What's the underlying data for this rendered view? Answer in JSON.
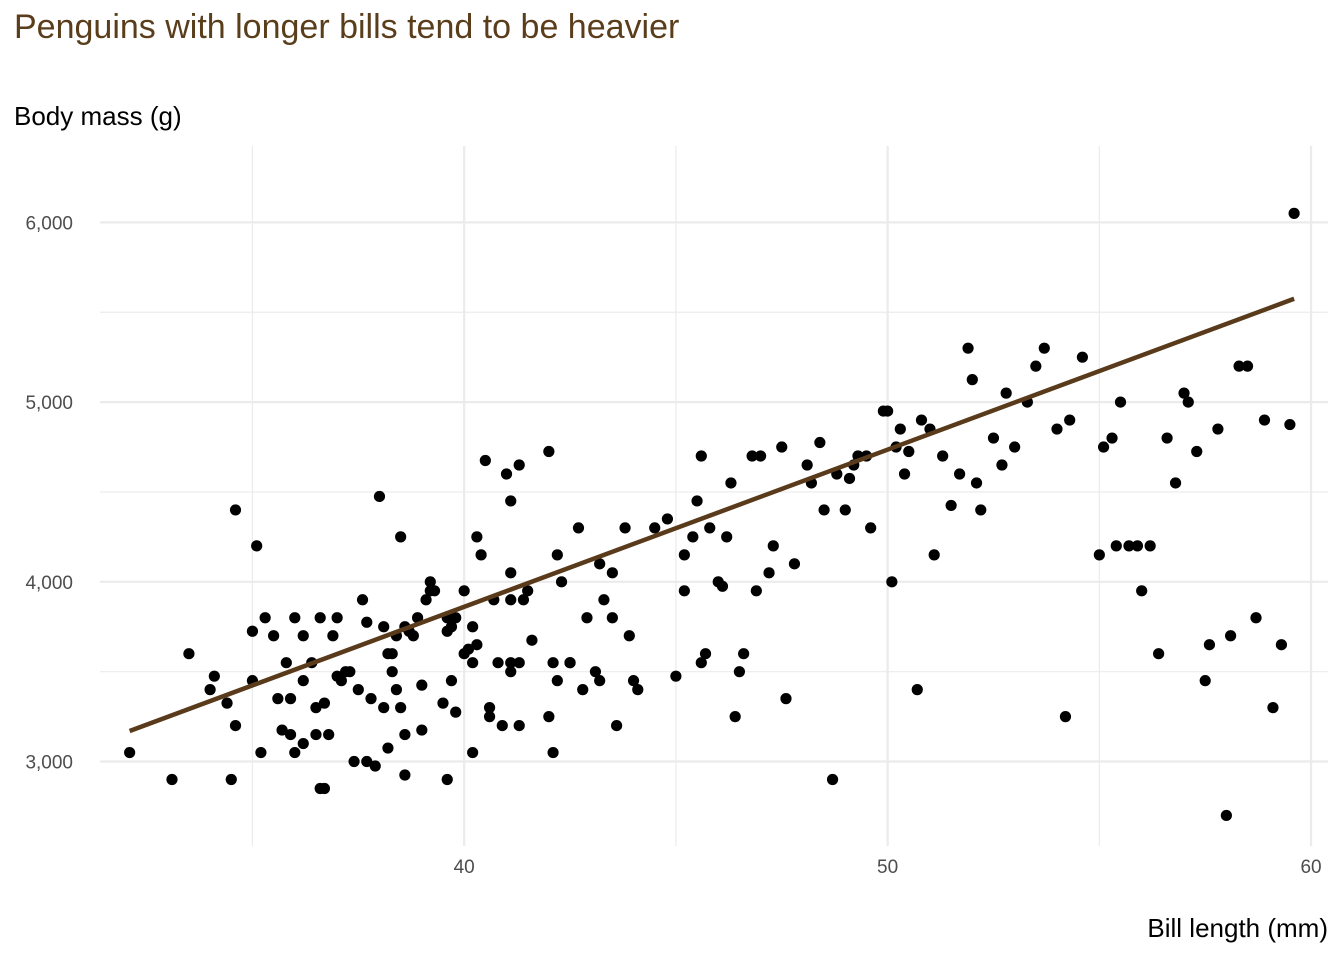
{
  "chart_data": {
    "type": "scatter",
    "title": "Penguins with longer bills tend to be heavier",
    "xlabel": "Bill length (mm)",
    "ylabel": "Body mass (g)",
    "xlim": [
      31.4,
      60.4
    ],
    "ylim": [
      2530,
      6425
    ],
    "x_ticks": [
      40,
      50,
      60
    ],
    "x_tick_labels": [
      "40",
      "50",
      "60"
    ],
    "y_ticks": [
      3000,
      4000,
      5000,
      6000
    ],
    "y_tick_labels": [
      "3,000",
      "4,000",
      "5,000",
      "6,000"
    ],
    "grid": true,
    "colors": {
      "title": "#5a3e1c",
      "trend": "#593a1a",
      "points": "#000000",
      "grid": "#ebebeb"
    },
    "trendline": {
      "x": [
        32.1,
        59.6
      ],
      "y": [
        3170,
        5575
      ]
    },
    "series": [
      {
        "points": [
          [
            32.1,
            3050
          ],
          [
            33.1,
            2900
          ],
          [
            33.5,
            3600
          ],
          [
            34.0,
            3400
          ],
          [
            34.1,
            3475
          ],
          [
            34.4,
            3325
          ],
          [
            34.5,
            2900
          ],
          [
            34.6,
            3200
          ],
          [
            34.6,
            4400
          ],
          [
            35.0,
            3725
          ],
          [
            35.0,
            3450
          ],
          [
            35.1,
            4200
          ],
          [
            35.2,
            3050
          ],
          [
            35.3,
            3800
          ],
          [
            35.5,
            3700
          ],
          [
            35.6,
            3350
          ],
          [
            35.7,
            3175
          ],
          [
            35.8,
            3550
          ],
          [
            35.9,
            3150
          ],
          [
            35.9,
            3350
          ],
          [
            36.0,
            3050
          ],
          [
            36.0,
            3800
          ],
          [
            36.2,
            3700
          ],
          [
            36.2,
            3100
          ],
          [
            36.2,
            3450
          ],
          [
            36.4,
            3550
          ],
          [
            36.5,
            3150
          ],
          [
            36.5,
            3300
          ],
          [
            36.6,
            3800
          ],
          [
            36.6,
            2850
          ],
          [
            36.7,
            2850
          ],
          [
            36.7,
            3325
          ],
          [
            36.8,
            3150
          ],
          [
            36.9,
            3700
          ],
          [
            37.0,
            3475
          ],
          [
            37.0,
            3800
          ],
          [
            37.1,
            3450
          ],
          [
            37.2,
            3500
          ],
          [
            37.3,
            3500
          ],
          [
            37.4,
            3000
          ],
          [
            37.5,
            3400
          ],
          [
            37.6,
            3900
          ],
          [
            37.7,
            3000
          ],
          [
            37.7,
            3775
          ],
          [
            37.8,
            3350
          ],
          [
            37.9,
            2975
          ],
          [
            38.0,
            4475
          ],
          [
            38.1,
            3750
          ],
          [
            38.1,
            3300
          ],
          [
            38.2,
            3600
          ],
          [
            38.2,
            3075
          ],
          [
            38.3,
            3500
          ],
          [
            38.3,
            3600
          ],
          [
            38.4,
            3700
          ],
          [
            38.4,
            3400
          ],
          [
            38.5,
            4250
          ],
          [
            38.5,
            3300
          ],
          [
            38.6,
            3150
          ],
          [
            38.6,
            3750
          ],
          [
            38.6,
            2925
          ],
          [
            38.7,
            3725
          ],
          [
            38.8,
            3700
          ],
          [
            38.9,
            3800
          ],
          [
            39.0,
            3425
          ],
          [
            39.0,
            3175
          ],
          [
            39.1,
            3900
          ],
          [
            39.2,
            3950
          ],
          [
            39.2,
            4000
          ],
          [
            39.3,
            3950
          ],
          [
            39.5,
            3325
          ],
          [
            39.6,
            3800
          ],
          [
            39.6,
            3725
          ],
          [
            39.6,
            2900
          ],
          [
            39.7,
            3750
          ],
          [
            39.7,
            3450
          ],
          [
            39.8,
            3800
          ],
          [
            39.8,
            3275
          ],
          [
            40.0,
            3950
          ],
          [
            40.0,
            3600
          ],
          [
            40.1,
            3625
          ],
          [
            40.2,
            3550
          ],
          [
            40.2,
            3050
          ],
          [
            40.2,
            3750
          ],
          [
            40.3,
            4250
          ],
          [
            40.3,
            3650
          ],
          [
            40.4,
            4150
          ],
          [
            40.5,
            4675
          ],
          [
            40.6,
            3300
          ],
          [
            40.6,
            3250
          ],
          [
            40.7,
            3900
          ],
          [
            40.8,
            3550
          ],
          [
            40.9,
            3200
          ],
          [
            41.0,
            4600
          ],
          [
            41.1,
            3550
          ],
          [
            41.1,
            4450
          ],
          [
            41.1,
            3900
          ],
          [
            41.1,
            3500
          ],
          [
            41.1,
            4050
          ],
          [
            41.3,
            4650
          ],
          [
            41.3,
            3550
          ],
          [
            41.3,
            3200
          ],
          [
            41.4,
            3900
          ],
          [
            41.5,
            3950
          ],
          [
            41.6,
            3675
          ],
          [
            42.0,
            4725
          ],
          [
            42.0,
            3250
          ],
          [
            42.1,
            3550
          ],
          [
            42.1,
            3050
          ],
          [
            42.2,
            3450
          ],
          [
            42.2,
            4150
          ],
          [
            42.3,
            4000
          ],
          [
            42.5,
            3550
          ],
          [
            42.5,
            3550
          ],
          [
            42.7,
            4300
          ],
          [
            42.8,
            3400
          ],
          [
            42.9,
            3800
          ],
          [
            43.1,
            3500
          ],
          [
            43.2,
            3450
          ],
          [
            43.2,
            4100
          ],
          [
            43.3,
            3900
          ],
          [
            43.5,
            3800
          ],
          [
            43.5,
            4050
          ],
          [
            43.6,
            3200
          ],
          [
            43.8,
            4300
          ],
          [
            43.9,
            3700
          ],
          [
            44.0,
            3450
          ],
          [
            44.1,
            3400
          ],
          [
            44.5,
            4300
          ],
          [
            44.8,
            4350
          ],
          [
            45.0,
            3475
          ],
          [
            45.2,
            3950
          ],
          [
            45.2,
            4150
          ],
          [
            45.4,
            4250
          ],
          [
            45.5,
            4450
          ],
          [
            45.6,
            4700
          ],
          [
            45.6,
            3550
          ],
          [
            45.7,
            3600
          ],
          [
            45.8,
            4300
          ],
          [
            46.0,
            4000
          ],
          [
            46.1,
            3975
          ],
          [
            46.2,
            4250
          ],
          [
            46.3,
            4550
          ],
          [
            46.4,
            3250
          ],
          [
            46.5,
            3500
          ],
          [
            46.6,
            3600
          ],
          [
            46.8,
            4700
          ],
          [
            46.9,
            3950
          ],
          [
            47.0,
            4700
          ],
          [
            47.2,
            4050
          ],
          [
            47.3,
            4200
          ],
          [
            47.5,
            4750
          ],
          [
            47.6,
            3350
          ],
          [
            47.8,
            4100
          ],
          [
            48.1,
            4650
          ],
          [
            48.2,
            4550
          ],
          [
            48.4,
            4775
          ],
          [
            48.5,
            4400
          ],
          [
            48.7,
            2900
          ],
          [
            48.8,
            4600
          ],
          [
            49.0,
            4400
          ],
          [
            49.1,
            4575
          ],
          [
            49.2,
            4650
          ],
          [
            49.3,
            4700
          ],
          [
            49.5,
            4700
          ],
          [
            49.6,
            4300
          ],
          [
            49.9,
            4950
          ],
          [
            50.0,
            4950
          ],
          [
            50.1,
            4000
          ],
          [
            50.2,
            4750
          ],
          [
            50.3,
            4850
          ],
          [
            50.4,
            4600
          ],
          [
            50.5,
            4725
          ],
          [
            50.7,
            3400
          ],
          [
            50.8,
            4900
          ],
          [
            51.0,
            4850
          ],
          [
            51.1,
            4150
          ],
          [
            51.3,
            4700
          ],
          [
            51.5,
            4425
          ],
          [
            51.7,
            4600
          ],
          [
            51.9,
            5300
          ],
          [
            52.0,
            5125
          ],
          [
            52.1,
            4550
          ],
          [
            52.2,
            4400
          ],
          [
            52.5,
            4800
          ],
          [
            52.7,
            4650
          ],
          [
            52.8,
            5050
          ],
          [
            53.0,
            4750
          ],
          [
            53.3,
            5000
          ],
          [
            53.5,
            5200
          ],
          [
            53.7,
            5300
          ],
          [
            54.0,
            4850
          ],
          [
            54.2,
            3250
          ],
          [
            54.3,
            4900
          ],
          [
            54.6,
            5250
          ],
          [
            55.0,
            4150
          ],
          [
            55.1,
            4750
          ],
          [
            55.3,
            4800
          ],
          [
            55.4,
            4200
          ],
          [
            55.5,
            5000
          ],
          [
            55.7,
            4200
          ],
          [
            55.9,
            4200
          ],
          [
            56.0,
            3950
          ],
          [
            56.2,
            4200
          ],
          [
            56.4,
            3600
          ],
          [
            56.6,
            4800
          ],
          [
            56.8,
            4550
          ],
          [
            57.0,
            5050
          ],
          [
            57.1,
            5000
          ],
          [
            57.3,
            4725
          ],
          [
            57.5,
            3450
          ],
          [
            57.6,
            3650
          ],
          [
            57.8,
            4850
          ],
          [
            58.0,
            2700
          ],
          [
            58.1,
            3700
          ],
          [
            58.3,
            5200
          ],
          [
            58.5,
            5200
          ],
          [
            58.7,
            3800
          ],
          [
            58.9,
            4900
          ],
          [
            59.1,
            3300
          ],
          [
            59.3,
            3650
          ],
          [
            59.5,
            4875
          ],
          [
            59.6,
            6050
          ]
        ]
      }
    ]
  }
}
